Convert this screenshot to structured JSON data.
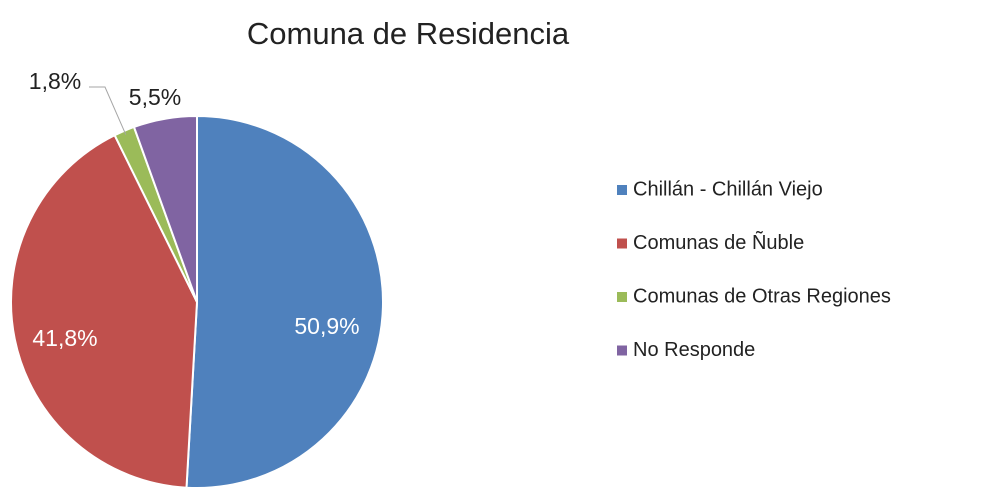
{
  "chart_data": {
    "type": "pie",
    "title": "Comuna de Residencia",
    "categories": [
      "Chillán - Chillán Viejo",
      "Comunas de Ñuble",
      "Comunas de Otras Regiones",
      "No Responde"
    ],
    "values": [
      50.9,
      41.8,
      1.8,
      5.5
    ],
    "value_labels": [
      "50,9%",
      "41,8%",
      "1,8%",
      "5,5%"
    ],
    "colors": [
      "#4f81bd",
      "#c0504d",
      "#9bbb59",
      "#8064a2"
    ],
    "legend": "right"
  }
}
